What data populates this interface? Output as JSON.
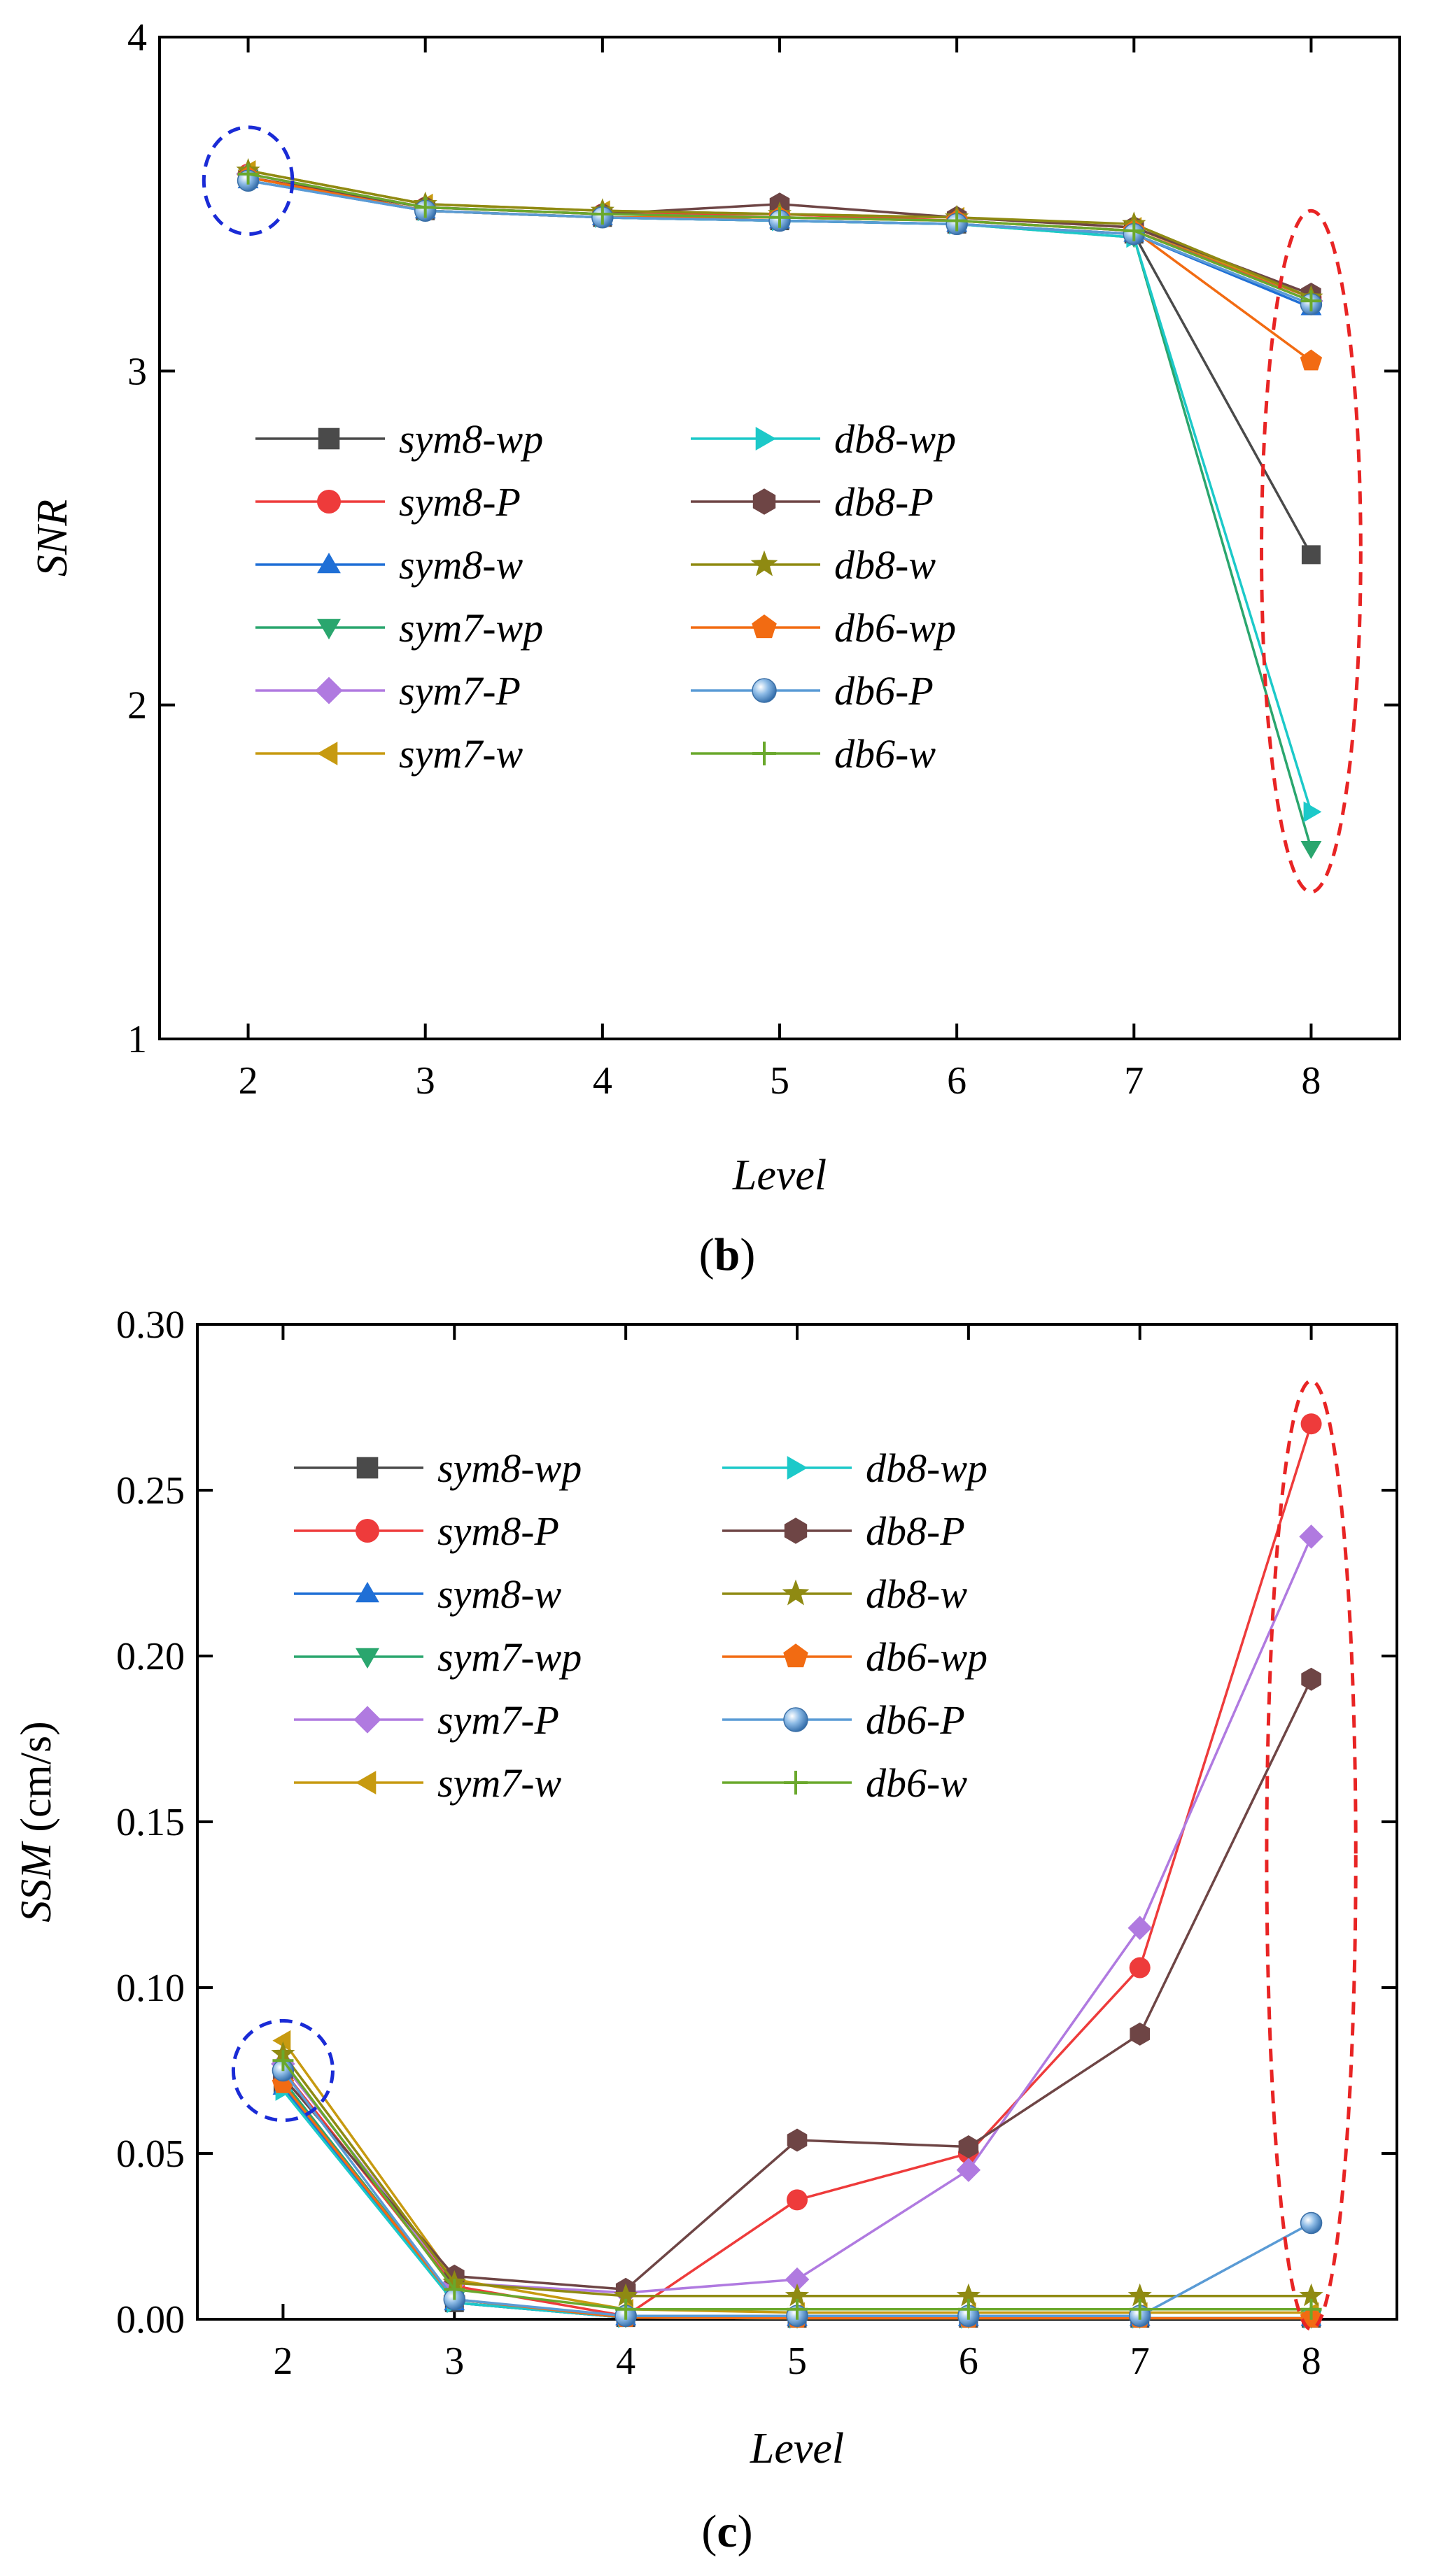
{
  "colors": {
    "sym8-wp": "#4a4a4a",
    "sym8-P": "#ee3b3b",
    "sym8-w": "#1f6fd6",
    "sym7-wp": "#2aa66e",
    "sym7-P": "#b07ae0",
    "sym7-w": "#c79a10",
    "db8-wp": "#1cc9c9",
    "db8-P": "#6e4545",
    "db8-w": "#8f8a12",
    "db6-wp": "#f26b12",
    "db6-P": "#5a9bd5",
    "db6-w": "#6aa82c",
    "highlight_blue": "#1a2bd6",
    "highlight_red": "#e82424"
  },
  "chart_data": [
    {
      "type": "line",
      "caption_open": "(",
      "caption_letter": "b",
      "caption_close": ")",
      "xlabel": "Level",
      "ylabel": "SNR",
      "ylim": [
        1,
        4
      ],
      "xlim": [
        1.5,
        8.5
      ],
      "yticks": [
        "1",
        "2",
        "3",
        "4"
      ],
      "xticks": [
        "2",
        "3",
        "4",
        "5",
        "6",
        "7",
        "8"
      ],
      "x": [
        2,
        3,
        4,
        5,
        6,
        7,
        8
      ],
      "series": [
        {
          "name": "sym8-wp",
          "marker": "square",
          "values": [
            3.58,
            3.48,
            3.46,
            3.45,
            3.44,
            3.41,
            2.45
          ]
        },
        {
          "name": "sym8-P",
          "marker": "circle",
          "values": [
            3.59,
            3.49,
            3.47,
            3.47,
            3.45,
            3.42,
            3.22
          ]
        },
        {
          "name": "sym8-w",
          "marker": "triangle-up",
          "values": [
            3.57,
            3.48,
            3.46,
            3.45,
            3.44,
            3.41,
            3.19
          ]
        },
        {
          "name": "sym7-wp",
          "marker": "triangle-down",
          "values": [
            3.58,
            3.48,
            3.46,
            3.45,
            3.44,
            3.4,
            1.57
          ]
        },
        {
          "name": "sym7-P",
          "marker": "diamond",
          "values": [
            3.59,
            3.49,
            3.47,
            3.46,
            3.45,
            3.42,
            3.21
          ]
        },
        {
          "name": "sym7-w",
          "marker": "triangle-left",
          "values": [
            3.6,
            3.5,
            3.48,
            3.47,
            3.46,
            3.43,
            3.22
          ]
        },
        {
          "name": "db8-wp",
          "marker": "triangle-right",
          "values": [
            3.58,
            3.48,
            3.46,
            3.45,
            3.44,
            3.4,
            1.68
          ]
        },
        {
          "name": "db8-P",
          "marker": "hexagon",
          "values": [
            3.58,
            3.49,
            3.47,
            3.5,
            3.46,
            3.43,
            3.23
          ]
        },
        {
          "name": "db8-w",
          "marker": "star",
          "values": [
            3.6,
            3.5,
            3.48,
            3.47,
            3.46,
            3.44,
            3.22
          ]
        },
        {
          "name": "db6-wp",
          "marker": "pentagon",
          "values": [
            3.58,
            3.48,
            3.46,
            3.46,
            3.45,
            3.42,
            3.03
          ]
        },
        {
          "name": "db6-P",
          "marker": "sphere",
          "values": [
            3.57,
            3.48,
            3.46,
            3.45,
            3.44,
            3.41,
            3.2
          ]
        },
        {
          "name": "db6-w",
          "marker": "plus",
          "values": [
            3.59,
            3.49,
            3.47,
            3.46,
            3.45,
            3.42,
            3.21
          ]
        }
      ],
      "highlights": [
        {
          "color": "highlight_blue",
          "x": 2,
          "y": 3.57,
          "rx": 0.25,
          "ry": 0.16
        },
        {
          "color": "highlight_red",
          "x": 8,
          "y": 2.46,
          "rx": 0.28,
          "ry": 1.02
        }
      ]
    },
    {
      "type": "line",
      "caption_open": "(",
      "caption_letter": "c",
      "caption_close": ")",
      "xlabel": "Level",
      "ylabel": "SSM",
      "ylabel_unit": " (cm/s)",
      "ylim": [
        0,
        0.3
      ],
      "xlim": [
        1.5,
        8.5
      ],
      "yticks": [
        "0.00",
        "0.05",
        "0.10",
        "0.15",
        "0.20",
        "0.25",
        "0.30"
      ],
      "xticks": [
        "2",
        "3",
        "4",
        "5",
        "6",
        "7",
        "8"
      ],
      "x": [
        2,
        3,
        4,
        5,
        6,
        7,
        8
      ],
      "series": [
        {
          "name": "sym8-wp",
          "marker": "square",
          "values": [
            0.071,
            0.005,
            0.0005,
            0.0003,
            0.0003,
            0.0003,
            0.0003
          ]
        },
        {
          "name": "sym8-P",
          "marker": "circle",
          "values": [
            0.075,
            0.01,
            0.001,
            0.036,
            0.05,
            0.106,
            0.27
          ]
        },
        {
          "name": "sym8-w",
          "marker": "triangle-up",
          "values": [
            0.07,
            0.005,
            0.0005,
            0.0003,
            0.0003,
            0.0003,
            0.0003
          ]
        },
        {
          "name": "sym7-wp",
          "marker": "triangle-down",
          "values": [
            0.072,
            0.006,
            0.0005,
            0.0003,
            0.0003,
            0.0003,
            0.0003
          ]
        },
        {
          "name": "sym7-P",
          "marker": "diamond",
          "values": [
            0.077,
            0.011,
            0.008,
            0.012,
            0.045,
            0.118,
            0.236
          ]
        },
        {
          "name": "sym7-w",
          "marker": "triangle-left",
          "values": [
            0.084,
            0.012,
            0.003,
            0.002,
            0.002,
            0.002,
            0.002
          ]
        },
        {
          "name": "db8-wp",
          "marker": "triangle-right",
          "values": [
            0.069,
            0.005,
            0.0005,
            0.0003,
            0.0003,
            0.0003,
            0.0003
          ]
        },
        {
          "name": "db8-P",
          "marker": "hexagon",
          "values": [
            0.073,
            0.013,
            0.009,
            0.054,
            0.052,
            0.086,
            0.193
          ]
        },
        {
          "name": "db8-w",
          "marker": "star",
          "values": [
            0.08,
            0.011,
            0.007,
            0.007,
            0.007,
            0.007,
            0.007
          ]
        },
        {
          "name": "db6-wp",
          "marker": "pentagon",
          "values": [
            0.071,
            0.006,
            0.0005,
            0.0003,
            0.0003,
            0.0003,
            0.0003
          ]
        },
        {
          "name": "db6-P",
          "marker": "sphere",
          "values": [
            0.075,
            0.006,
            0.001,
            0.001,
            0.001,
            0.001,
            0.029
          ]
        },
        {
          "name": "db6-w",
          "marker": "plus",
          "values": [
            0.078,
            0.009,
            0.003,
            0.003,
            0.003,
            0.003,
            0.003
          ]
        }
      ],
      "highlights": [
        {
          "color": "highlight_blue",
          "x": 2,
          "y": 0.075,
          "rx": 0.29,
          "ry": 0.015
        },
        {
          "color": "highlight_red",
          "x": 8,
          "y": 0.14,
          "rx": 0.26,
          "ry": 0.143
        }
      ]
    }
  ]
}
